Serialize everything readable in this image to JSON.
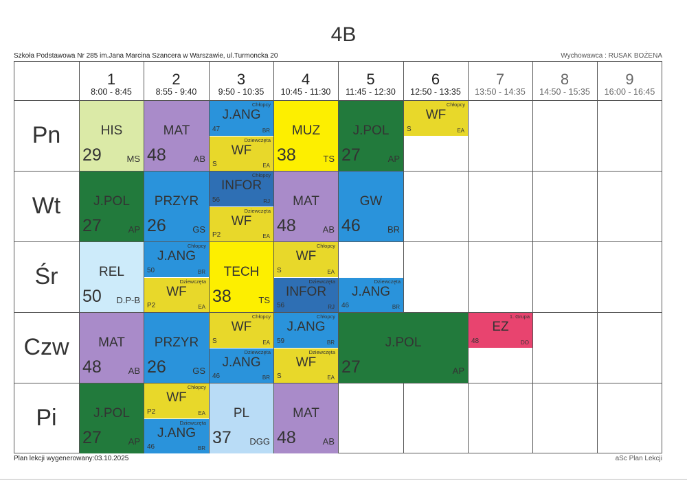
{
  "header": {
    "title": "4B",
    "school": "Szkoła Podstawowa Nr 285 im.Jana Marcina Szancera w Warszawie, ul.Turmoncka 20",
    "tutor": "Wychowawca : RUSAK BOŻENA"
  },
  "periods": [
    {
      "num": "1",
      "time": "8:00 - 8:45"
    },
    {
      "num": "2",
      "time": "8:55 - 9:40"
    },
    {
      "num": "3",
      "time": "9:50 - 10:35"
    },
    {
      "num": "4",
      "time": "10:45 - 11:30"
    },
    {
      "num": "5",
      "time": "11:45 - 12:30"
    },
    {
      "num": "6",
      "time": "12:50 - 13:35"
    },
    {
      "num": "7",
      "time": "13:50 - 14:35"
    },
    {
      "num": "8",
      "time": "14:50 - 15:35"
    },
    {
      "num": "9",
      "time": "16:00 - 16:45"
    }
  ],
  "days": [
    "Pn",
    "Wt",
    "Śr",
    "Czw",
    "Pi"
  ],
  "colors": {
    "his": "#dbeaa7",
    "mat": "#a98bc9",
    "jang": "#2a93db",
    "wf": "#e8d82a",
    "muz": "#fdef00",
    "jpol": "#227a3c",
    "przyr": "#2a93db",
    "infor": "#2e6fb4",
    "gw": "#2a93db",
    "rel": "#cdebfa",
    "tech": "#fdef00",
    "ez": "#e8446f",
    "pl": "#b9dcf6"
  },
  "lessons": [
    {
      "day": 0,
      "period": 0,
      "span": 1,
      "half": "full",
      "subject": "HIS",
      "room": "29",
      "teacher": "MS",
      "group": "",
      "color": "his"
    },
    {
      "day": 0,
      "period": 1,
      "span": 1,
      "half": "full",
      "subject": "MAT",
      "room": "48",
      "teacher": "AB",
      "group": "",
      "color": "mat"
    },
    {
      "day": 0,
      "period": 2,
      "span": 1,
      "half": "top",
      "subject": "J.ANG",
      "room": "47",
      "teacher": "BR",
      "group": "Chłopcy",
      "color": "jang"
    },
    {
      "day": 0,
      "period": 2,
      "span": 1,
      "half": "bottom",
      "subject": "WF",
      "room": "S",
      "teacher": "EA",
      "group": "Dziewczęta",
      "color": "wf"
    },
    {
      "day": 0,
      "period": 3,
      "span": 1,
      "half": "full",
      "subject": "MUZ",
      "room": "38",
      "teacher": "TS",
      "group": "",
      "color": "muz"
    },
    {
      "day": 0,
      "period": 4,
      "span": 1,
      "half": "full",
      "subject": "J.POL",
      "room": "27",
      "teacher": "AP",
      "group": "",
      "color": "jpol"
    },
    {
      "day": 0,
      "period": 5,
      "span": 1,
      "half": "top",
      "subject": "WF",
      "room": "S",
      "teacher": "EA",
      "group": "Chłopcy",
      "color": "wf"
    },
    {
      "day": 1,
      "period": 0,
      "span": 1,
      "half": "full",
      "subject": "J.POL",
      "room": "27",
      "teacher": "AP",
      "group": "",
      "color": "jpol"
    },
    {
      "day": 1,
      "period": 1,
      "span": 1,
      "half": "full",
      "subject": "PRZYR",
      "room": "26",
      "teacher": "GS",
      "group": "",
      "color": "przyr"
    },
    {
      "day": 1,
      "period": 2,
      "span": 1,
      "half": "top",
      "subject": "INFOR",
      "room": "56",
      "teacher": "RJ",
      "group": "Chłopcy",
      "color": "infor"
    },
    {
      "day": 1,
      "period": 2,
      "span": 1,
      "half": "bottom",
      "subject": "WF",
      "room": "P2",
      "teacher": "EA",
      "group": "Dziewczęta",
      "color": "wf"
    },
    {
      "day": 1,
      "period": 3,
      "span": 1,
      "half": "full",
      "subject": "MAT",
      "room": "48",
      "teacher": "AB",
      "group": "",
      "color": "mat"
    },
    {
      "day": 1,
      "period": 4,
      "span": 1,
      "half": "full",
      "subject": "GW",
      "room": "46",
      "teacher": "BR",
      "group": "",
      "color": "gw"
    },
    {
      "day": 2,
      "period": 0,
      "span": 1,
      "half": "full",
      "subject": "REL",
      "room": "50",
      "teacher": "D.P-B",
      "group": "",
      "color": "rel"
    },
    {
      "day": 2,
      "period": 1,
      "span": 1,
      "half": "top",
      "subject": "J.ANG",
      "room": "50",
      "teacher": "BR",
      "group": "Chłopcy",
      "color": "jang"
    },
    {
      "day": 2,
      "period": 1,
      "span": 1,
      "half": "bottom",
      "subject": "WF",
      "room": "P2",
      "teacher": "EA",
      "group": "Dziewczęta",
      "color": "wf"
    },
    {
      "day": 2,
      "period": 2,
      "span": 1,
      "half": "full",
      "subject": "TECH",
      "room": "38",
      "teacher": "TS",
      "group": "",
      "color": "tech"
    },
    {
      "day": 2,
      "period": 3,
      "span": 1,
      "half": "top",
      "subject": "WF",
      "room": "S",
      "teacher": "EA",
      "group": "Chłopcy",
      "color": "wf"
    },
    {
      "day": 2,
      "period": 3,
      "span": 1,
      "half": "bottom",
      "subject": "INFOR",
      "room": "56",
      "teacher": "RJ",
      "group": "Dziewczęta",
      "color": "infor"
    },
    {
      "day": 2,
      "period": 4,
      "span": 1,
      "half": "bottom",
      "subject": "J.ANG",
      "room": "46",
      "teacher": "BR",
      "group": "Dziewczęta",
      "color": "jang"
    },
    {
      "day": 3,
      "period": 0,
      "span": 1,
      "half": "full",
      "subject": "MAT",
      "room": "48",
      "teacher": "AB",
      "group": "",
      "color": "mat"
    },
    {
      "day": 3,
      "period": 1,
      "span": 1,
      "half": "full",
      "subject": "PRZYR",
      "room": "26",
      "teacher": "GS",
      "group": "",
      "color": "przyr"
    },
    {
      "day": 3,
      "period": 2,
      "span": 1,
      "half": "top",
      "subject": "WF",
      "room": "S",
      "teacher": "EA",
      "group": "Chłopcy",
      "color": "wf"
    },
    {
      "day": 3,
      "period": 2,
      "span": 1,
      "half": "bottom",
      "subject": "J.ANG",
      "room": "46",
      "teacher": "BR",
      "group": "Dziewczęta",
      "color": "jang"
    },
    {
      "day": 3,
      "period": 3,
      "span": 1,
      "half": "top",
      "subject": "J.ANG",
      "room": "59",
      "teacher": "BR",
      "group": "Chłopcy",
      "color": "jang"
    },
    {
      "day": 3,
      "period": 3,
      "span": 1,
      "half": "bottom",
      "subject": "WF",
      "room": "S",
      "teacher": "EA",
      "group": "Dziewczęta",
      "color": "wf"
    },
    {
      "day": 3,
      "period": 4,
      "span": 2,
      "half": "full",
      "subject": "J.POL",
      "room": "27",
      "teacher": "AP",
      "group": "",
      "color": "jpol"
    },
    {
      "day": 3,
      "period": 6,
      "span": 1,
      "half": "top",
      "subject": "EZ",
      "room": "48",
      "teacher": "DO",
      "group": "1. Grupa",
      "color": "ez"
    },
    {
      "day": 4,
      "period": 0,
      "span": 1,
      "half": "full",
      "subject": "J.POL",
      "room": "27",
      "teacher": "AP",
      "group": "",
      "color": "jpol"
    },
    {
      "day": 4,
      "period": 1,
      "span": 1,
      "half": "top",
      "subject": "WF",
      "room": "P2",
      "teacher": "EA",
      "group": "Chłopcy",
      "color": "wf"
    },
    {
      "day": 4,
      "period": 1,
      "span": 1,
      "half": "bottom",
      "subject": "J.ANG",
      "room": "46",
      "teacher": "BR",
      "group": "Dziewczęta",
      "color": "jang"
    },
    {
      "day": 4,
      "period": 2,
      "span": 1,
      "half": "full",
      "subject": "PL",
      "room": "37",
      "teacher": "DGG",
      "group": "",
      "color": "pl"
    },
    {
      "day": 4,
      "period": 3,
      "span": 1,
      "half": "full",
      "subject": "MAT",
      "room": "48",
      "teacher": "AB",
      "group": "",
      "color": "mat"
    }
  ],
  "footer": {
    "generated": "Plan lekcji wygenerowany:03.10.2025",
    "brand": "aSc Plan Lekcji"
  }
}
